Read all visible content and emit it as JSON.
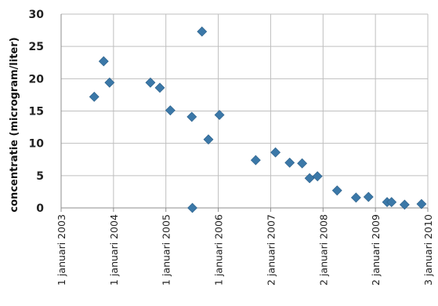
{
  "chart_data": {
    "type": "scatter",
    "ylabel": "concentratie (microgram/liter)",
    "xlabel": "",
    "x_tick_labels": [
      "1 januari 2003",
      "1 januari 2004",
      "1 januari 2005",
      "1 januari 2006",
      "2 januari 2007",
      "2 januari 2008",
      "2 januari 2009",
      "3 januari 2010"
    ],
    "y_tick_labels": [
      "0",
      "5",
      "10",
      "15",
      "20",
      "25",
      "30"
    ],
    "ylim": [
      0,
      30
    ],
    "xlim": [
      "2003-01-01",
      "2010-01-03"
    ],
    "grid": true,
    "marker": "diamond",
    "color": "#3b78a8",
    "points": [
      {
        "x": "2003-08-20",
        "y": 17.2
      },
      {
        "x": "2003-10-25",
        "y": 22.7
      },
      {
        "x": "2003-12-05",
        "y": 19.4
      },
      {
        "x": "2004-09-15",
        "y": 19.4
      },
      {
        "x": "2004-11-20",
        "y": 18.6
      },
      {
        "x": "2005-02-01",
        "y": 15.1
      },
      {
        "x": "2005-07-01",
        "y": 14.1
      },
      {
        "x": "2005-07-05",
        "y": 0.0
      },
      {
        "x": "2005-09-10",
        "y": 27.3
      },
      {
        "x": "2005-10-25",
        "y": 10.6
      },
      {
        "x": "2006-01-10",
        "y": 14.4
      },
      {
        "x": "2006-09-20",
        "y": 7.4
      },
      {
        "x": "2007-02-05",
        "y": 8.6
      },
      {
        "x": "2007-05-15",
        "y": 7.0
      },
      {
        "x": "2007-08-10",
        "y": 6.9
      },
      {
        "x": "2007-10-01",
        "y": 4.6
      },
      {
        "x": "2007-11-25",
        "y": 4.9
      },
      {
        "x": "2008-04-10",
        "y": 2.7
      },
      {
        "x": "2008-08-20",
        "y": 1.6
      },
      {
        "x": "2008-11-15",
        "y": 1.7
      },
      {
        "x": "2009-03-25",
        "y": 0.9
      },
      {
        "x": "2009-04-25",
        "y": 0.9
      },
      {
        "x": "2009-07-25",
        "y": 0.5
      },
      {
        "x": "2009-11-20",
        "y": 0.6
      }
    ]
  }
}
